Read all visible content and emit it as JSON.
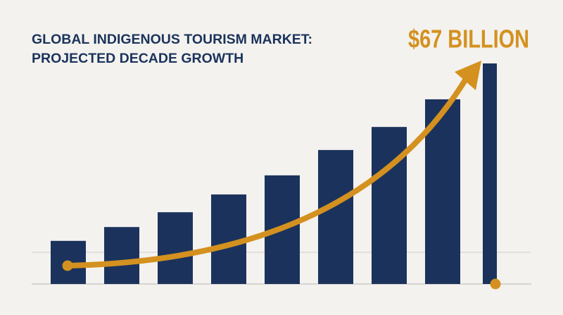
{
  "chart_data": {
    "type": "bar",
    "title": [
      "GLOBAL INDIGENOUS TOURISM MARKET:",
      "PROJECTED DECADE GROWTH"
    ],
    "annotation": "$67 BILLION",
    "values": [
      13.1,
      17.3,
      21.8,
      27.2,
      33.0,
      40.7,
      47.7,
      56.1,
      67
    ],
    "color": "#1b335c",
    "ylim": [
      0,
      67
    ]
  }
}
